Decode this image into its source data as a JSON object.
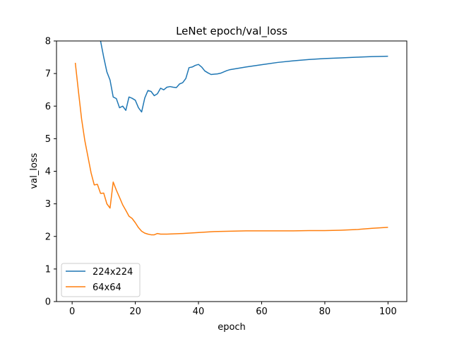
{
  "chart_data": {
    "type": "line",
    "title": "LeNet epoch/val_loss",
    "xlabel": "epoch",
    "ylabel": "val_loss",
    "xlim": [
      -4.95,
      105.95
    ],
    "ylim": [
      0,
      8
    ],
    "xticks": [
      0,
      20,
      40,
      60,
      80,
      100
    ],
    "yticks": [
      0,
      1,
      2,
      3,
      4,
      5,
      6,
      7,
      8
    ],
    "grid": false,
    "legend_position": "lower-left",
    "series": [
      {
        "name": "224x224",
        "color": "#1f77b4",
        "x": [
          9,
          10,
          11,
          12,
          13,
          14,
          15,
          16,
          17,
          18,
          19,
          20,
          21,
          22,
          23,
          24,
          25,
          26,
          27,
          28,
          29,
          30,
          31,
          32,
          33,
          34,
          35,
          36,
          37,
          38,
          39,
          40,
          41,
          42,
          43,
          44,
          45,
          46,
          47,
          48,
          49,
          50,
          55,
          60,
          65,
          70,
          75,
          80,
          85,
          90,
          95,
          100
        ],
        "y": [
          8.0,
          7.5,
          7.05,
          6.8,
          6.28,
          6.23,
          5.95,
          6.0,
          5.87,
          6.28,
          6.24,
          6.18,
          5.95,
          5.82,
          6.25,
          6.48,
          6.45,
          6.32,
          6.38,
          6.55,
          6.5,
          6.58,
          6.6,
          6.58,
          6.57,
          6.68,
          6.72,
          6.85,
          7.18,
          7.2,
          7.25,
          7.28,
          7.2,
          7.08,
          7.02,
          6.97,
          6.98,
          6.99,
          7.01,
          7.05,
          7.09,
          7.12,
          7.2,
          7.27,
          7.34,
          7.39,
          7.43,
          7.46,
          7.48,
          7.5,
          7.52,
          7.53
        ]
      },
      {
        "name": "64x64",
        "color": "#ff7f0e",
        "x": [
          1,
          2,
          3,
          4,
          5,
          6,
          7,
          8,
          9,
          10,
          11,
          12,
          13,
          14,
          15,
          16,
          17,
          18,
          19,
          20,
          21,
          22,
          23,
          24,
          25,
          26,
          27,
          28,
          30,
          35,
          40,
          45,
          50,
          55,
          60,
          65,
          70,
          75,
          80,
          85,
          90,
          95,
          100
        ],
        "y": [
          7.33,
          6.45,
          5.6,
          4.95,
          4.45,
          3.95,
          3.58,
          3.6,
          3.32,
          3.33,
          3.0,
          2.87,
          3.67,
          3.42,
          3.2,
          2.97,
          2.8,
          2.62,
          2.55,
          2.42,
          2.27,
          2.16,
          2.1,
          2.07,
          2.05,
          2.05,
          2.09,
          2.07,
          2.07,
          2.09,
          2.12,
          2.15,
          2.16,
          2.17,
          2.17,
          2.17,
          2.17,
          2.18,
          2.18,
          2.19,
          2.21,
          2.25,
          2.28
        ]
      }
    ]
  }
}
